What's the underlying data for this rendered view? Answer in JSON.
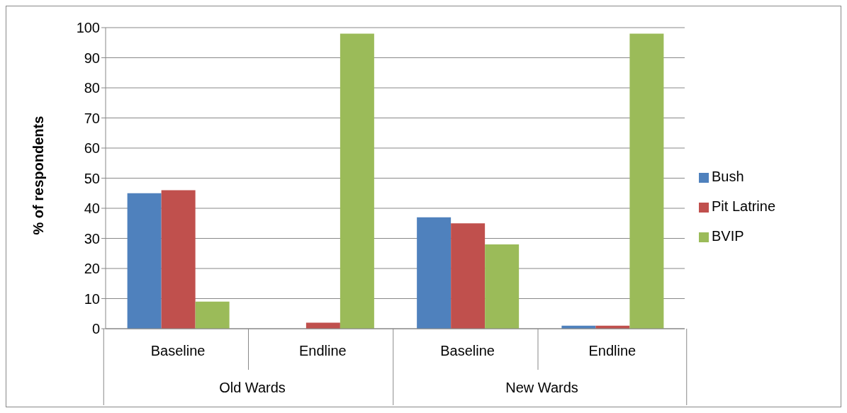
{
  "chart_data": {
    "type": "bar",
    "ylabel": "% of respondents",
    "categories": [
      "Baseline",
      "Endline",
      "Baseline",
      "Endline"
    ],
    "annotations": [
      "Old Wards",
      "New Wards"
    ],
    "series": [
      {
        "name": "Bush",
        "color": "#4f81bd",
        "values": [
          45,
          0,
          37,
          1
        ]
      },
      {
        "name": "Pit Latrine",
        "color": "#c0504d",
        "values": [
          46,
          2,
          35,
          1
        ]
      },
      {
        "name": "BVIP",
        "color": "#9bbb59",
        "values": [
          9,
          98,
          28,
          98
        ]
      }
    ],
    "ylim": [
      0,
      100
    ],
    "yticks": [
      0,
      10,
      20,
      30,
      40,
      50,
      60,
      70,
      80,
      90,
      100
    ],
    "grid": "y",
    "legend": "right"
  }
}
